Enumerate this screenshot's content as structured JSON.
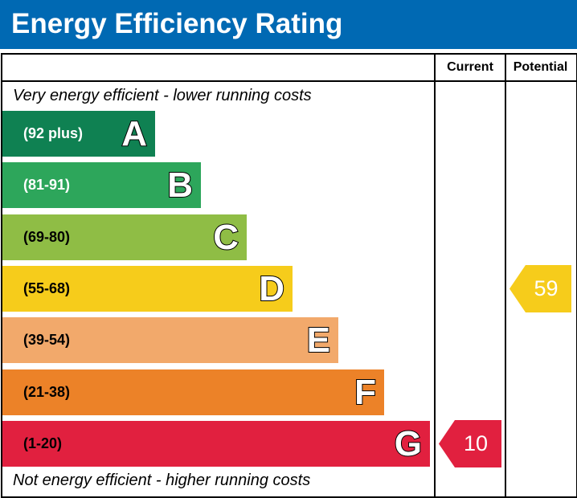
{
  "title": "Energy Efficiency Rating",
  "columns": {
    "current": "Current",
    "potential": "Potential"
  },
  "captions": {
    "top": "Very energy efficient - lower running costs",
    "bottom": "Not energy efficient - higher running costs"
  },
  "chart_data": {
    "type": "bar",
    "categories": [
      "A",
      "B",
      "C",
      "D",
      "E",
      "F",
      "G"
    ],
    "ranges": [
      "(92 plus)",
      "(81-91)",
      "(69-80)",
      "(55-68)",
      "(39-54)",
      "(21-38)",
      "(1-20)"
    ],
    "colors": [
      "#0f8152",
      "#2da65b",
      "#8fbd45",
      "#f6cc1b",
      "#f2a96b",
      "#ec8228",
      "#e1203f"
    ],
    "range_text_colors": [
      "#ffffff",
      "#ffffff",
      "#000000",
      "#000000",
      "#000000",
      "#000000",
      "#000000"
    ],
    "current": {
      "value": 10,
      "band": "G",
      "color": "#e1203f"
    },
    "potential": {
      "value": 59,
      "band": "D",
      "color": "#f6cc1b"
    }
  }
}
